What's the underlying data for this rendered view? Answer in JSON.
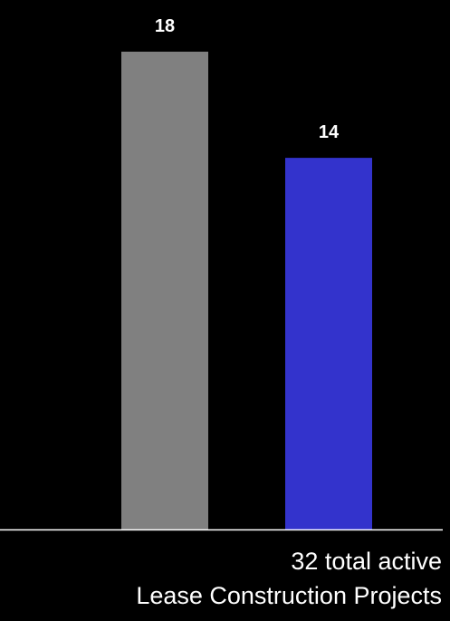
{
  "chart_data": {
    "type": "bar",
    "categories": [
      "",
      ""
    ],
    "values": [
      18,
      14
    ],
    "colors": [
      "#808080",
      "#3333cc"
    ],
    "data_label_color": "#ffffff",
    "axis_color": "#ffffff",
    "ylim": [
      0,
      18
    ],
    "grid": false,
    "legend": "none"
  },
  "caption": {
    "line1": "32 total active",
    "line2": "Lease Construction Projects"
  }
}
